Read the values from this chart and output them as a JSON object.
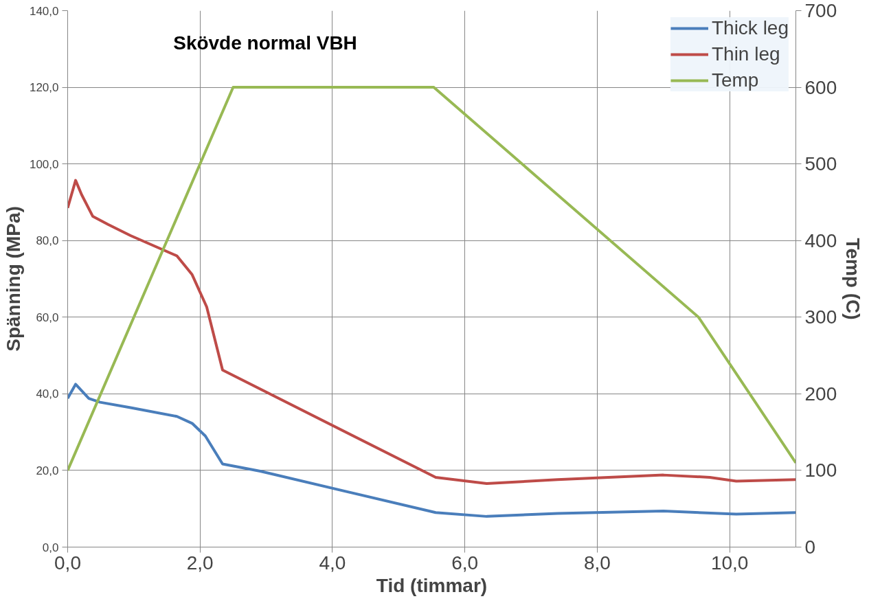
{
  "chart_data": {
    "type": "line",
    "title": "Skövde normal VBH",
    "xlabel": "Tid (timmar)",
    "ylabel": "Spänning (MPa)",
    "y2label": "Temp (C)",
    "xlim": [
      0,
      11
    ],
    "xticks": [
      {
        "value": 0,
        "label": "0,0"
      },
      {
        "value": 2,
        "label": "2,0"
      },
      {
        "value": 4,
        "label": "4,0"
      },
      {
        "value": 6,
        "label": "6,0"
      },
      {
        "value": 8,
        "label": "8,0"
      },
      {
        "value": 10,
        "label": "10,0"
      }
    ],
    "ylim": [
      0,
      140
    ],
    "yticks": [
      {
        "value": 0,
        "label": "0,0"
      },
      {
        "value": 20,
        "label": "20,0"
      },
      {
        "value": 40,
        "label": "40,0"
      },
      {
        "value": 60,
        "label": "60,0"
      },
      {
        "value": 80,
        "label": "80,0"
      },
      {
        "value": 100,
        "label": "100,0"
      },
      {
        "value": 120,
        "label": "120,0"
      },
      {
        "value": 140,
        "label": "140,0"
      }
    ],
    "y2lim": [
      0,
      700
    ],
    "y2ticks": [
      0,
      100,
      200,
      300,
      400,
      500,
      600,
      700
    ],
    "grid": true,
    "legend": "top right",
    "marker": "none",
    "line_style": "solid",
    "series": [
      {
        "name": "Thick leg",
        "color": "#4a7ebb",
        "x": [
          0,
          0.12,
          0.32,
          0.49,
          0.95,
          1.65,
          1.88,
          2.08,
          2.34,
          2.91,
          5.56,
          6.33,
          7.4,
          9.0,
          10.1,
          11.0
        ],
        "values": [
          38.8,
          42.5,
          38.8,
          37.8,
          36.4,
          34.1,
          32.3,
          29.0,
          21.7,
          19.8,
          9.0,
          8.0,
          8.8,
          9.4,
          8.6,
          9.0
        ]
      },
      {
        "name": "Thin leg",
        "color": "#be4b48",
        "x": [
          0,
          0.12,
          0.21,
          0.38,
          0.61,
          0.95,
          1.65,
          1.88,
          2.1,
          2.34,
          5.56,
          6.33,
          7.4,
          9.0,
          9.7,
          10.1,
          11.0
        ],
        "values": [
          88.5,
          95.7,
          92.0,
          86.3,
          84.2,
          81.3,
          76.0,
          71.1,
          62.7,
          46.2,
          18.2,
          16.6,
          17.6,
          18.8,
          18.2,
          17.2,
          17.6
        ]
      },
      {
        "name": "Temp",
        "color": "#98b954",
        "axis": "y2",
        "x": [
          0,
          2.5,
          5.53,
          9.53,
          11.0
        ],
        "values": [
          100,
          600,
          600,
          300,
          110
        ]
      }
    ]
  }
}
